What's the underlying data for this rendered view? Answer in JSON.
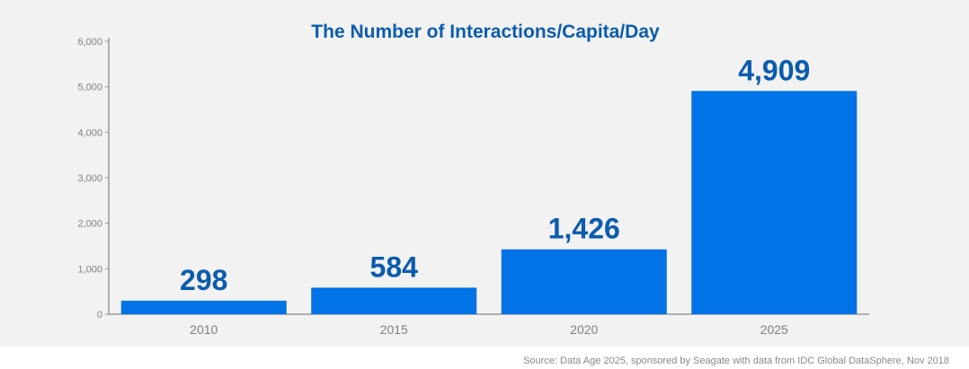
{
  "chart_data": {
    "type": "bar",
    "title": "The Number of Interactions/Capita/Day",
    "categories": [
      "2010",
      "2015",
      "2020",
      "2025"
    ],
    "values": [
      298,
      584,
      1426,
      4909
    ],
    "data_labels": [
      "298",
      "584",
      "1,426",
      "4,909"
    ],
    "yticks": [
      "0",
      "1,000",
      "2,000",
      "3,000",
      "4,000",
      "5,000",
      "6,000"
    ],
    "ylim": [
      0,
      6000
    ],
    "xlabel": "",
    "ylabel": "",
    "grid": false,
    "legend": "none",
    "colors": {
      "bar": "#0073e6",
      "title": "#0b5cad",
      "data_label": "#0b5cad",
      "axis": "#999999",
      "tick_label": "#7f7f7f",
      "background": "#f2f2f2"
    }
  },
  "source": "Source: Data Age 2025, sponsored by Seagate with data from IDC Global DataSphere, Nov 2018"
}
